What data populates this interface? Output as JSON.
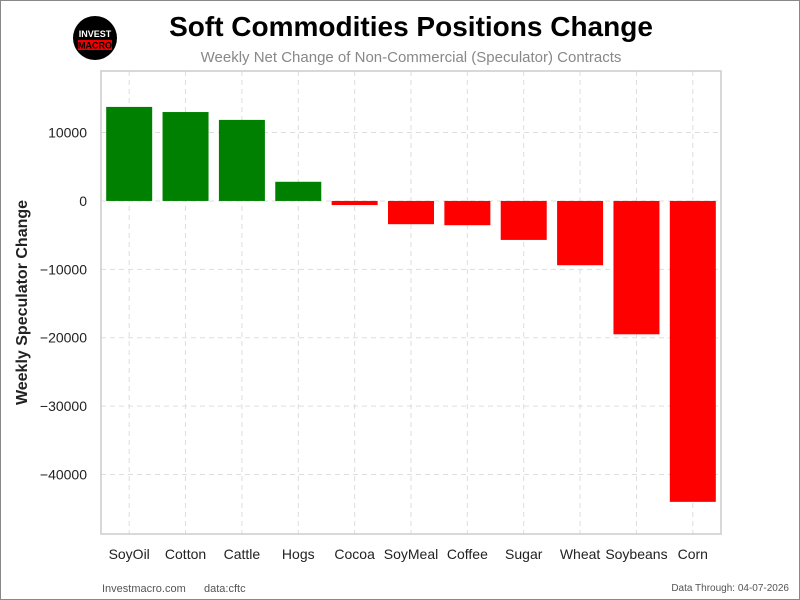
{
  "chart_data": {
    "type": "bar",
    "title": "Soft Commodities Positions Change",
    "subtitle": "Weekly Net Change of Non-Commercial (Speculator) Contracts",
    "xlabel": "",
    "ylabel": "Weekly Speculator Change",
    "categories": [
      "SoyOil",
      "Cotton",
      "Cattle",
      "Hogs",
      "Cocoa",
      "SoyMeal",
      "Coffee",
      "Sugar",
      "Wheat",
      "Soybeans",
      "Corn"
    ],
    "values": [
      13750,
      13000,
      11850,
      2800,
      -600,
      -3400,
      -3550,
      -5700,
      -9400,
      -19500,
      -44000
    ],
    "ylim": [
      -48700,
      19000
    ],
    "yticks": [
      10000,
      0,
      -10000,
      -20000,
      -30000,
      -40000
    ],
    "ytick_labels": [
      "10000",
      "0",
      "−10000",
      "−20000",
      "−30000",
      "−40000"
    ],
    "grid": true,
    "colors": {
      "positive": "#008000",
      "negative": "#ff0000"
    }
  },
  "logo": {
    "line1": "INVEST",
    "line2": "MACRO"
  },
  "footer": {
    "site": "Investmacro.com",
    "source": "data:cftc",
    "date": "Data Through: 04-07-2026"
  }
}
